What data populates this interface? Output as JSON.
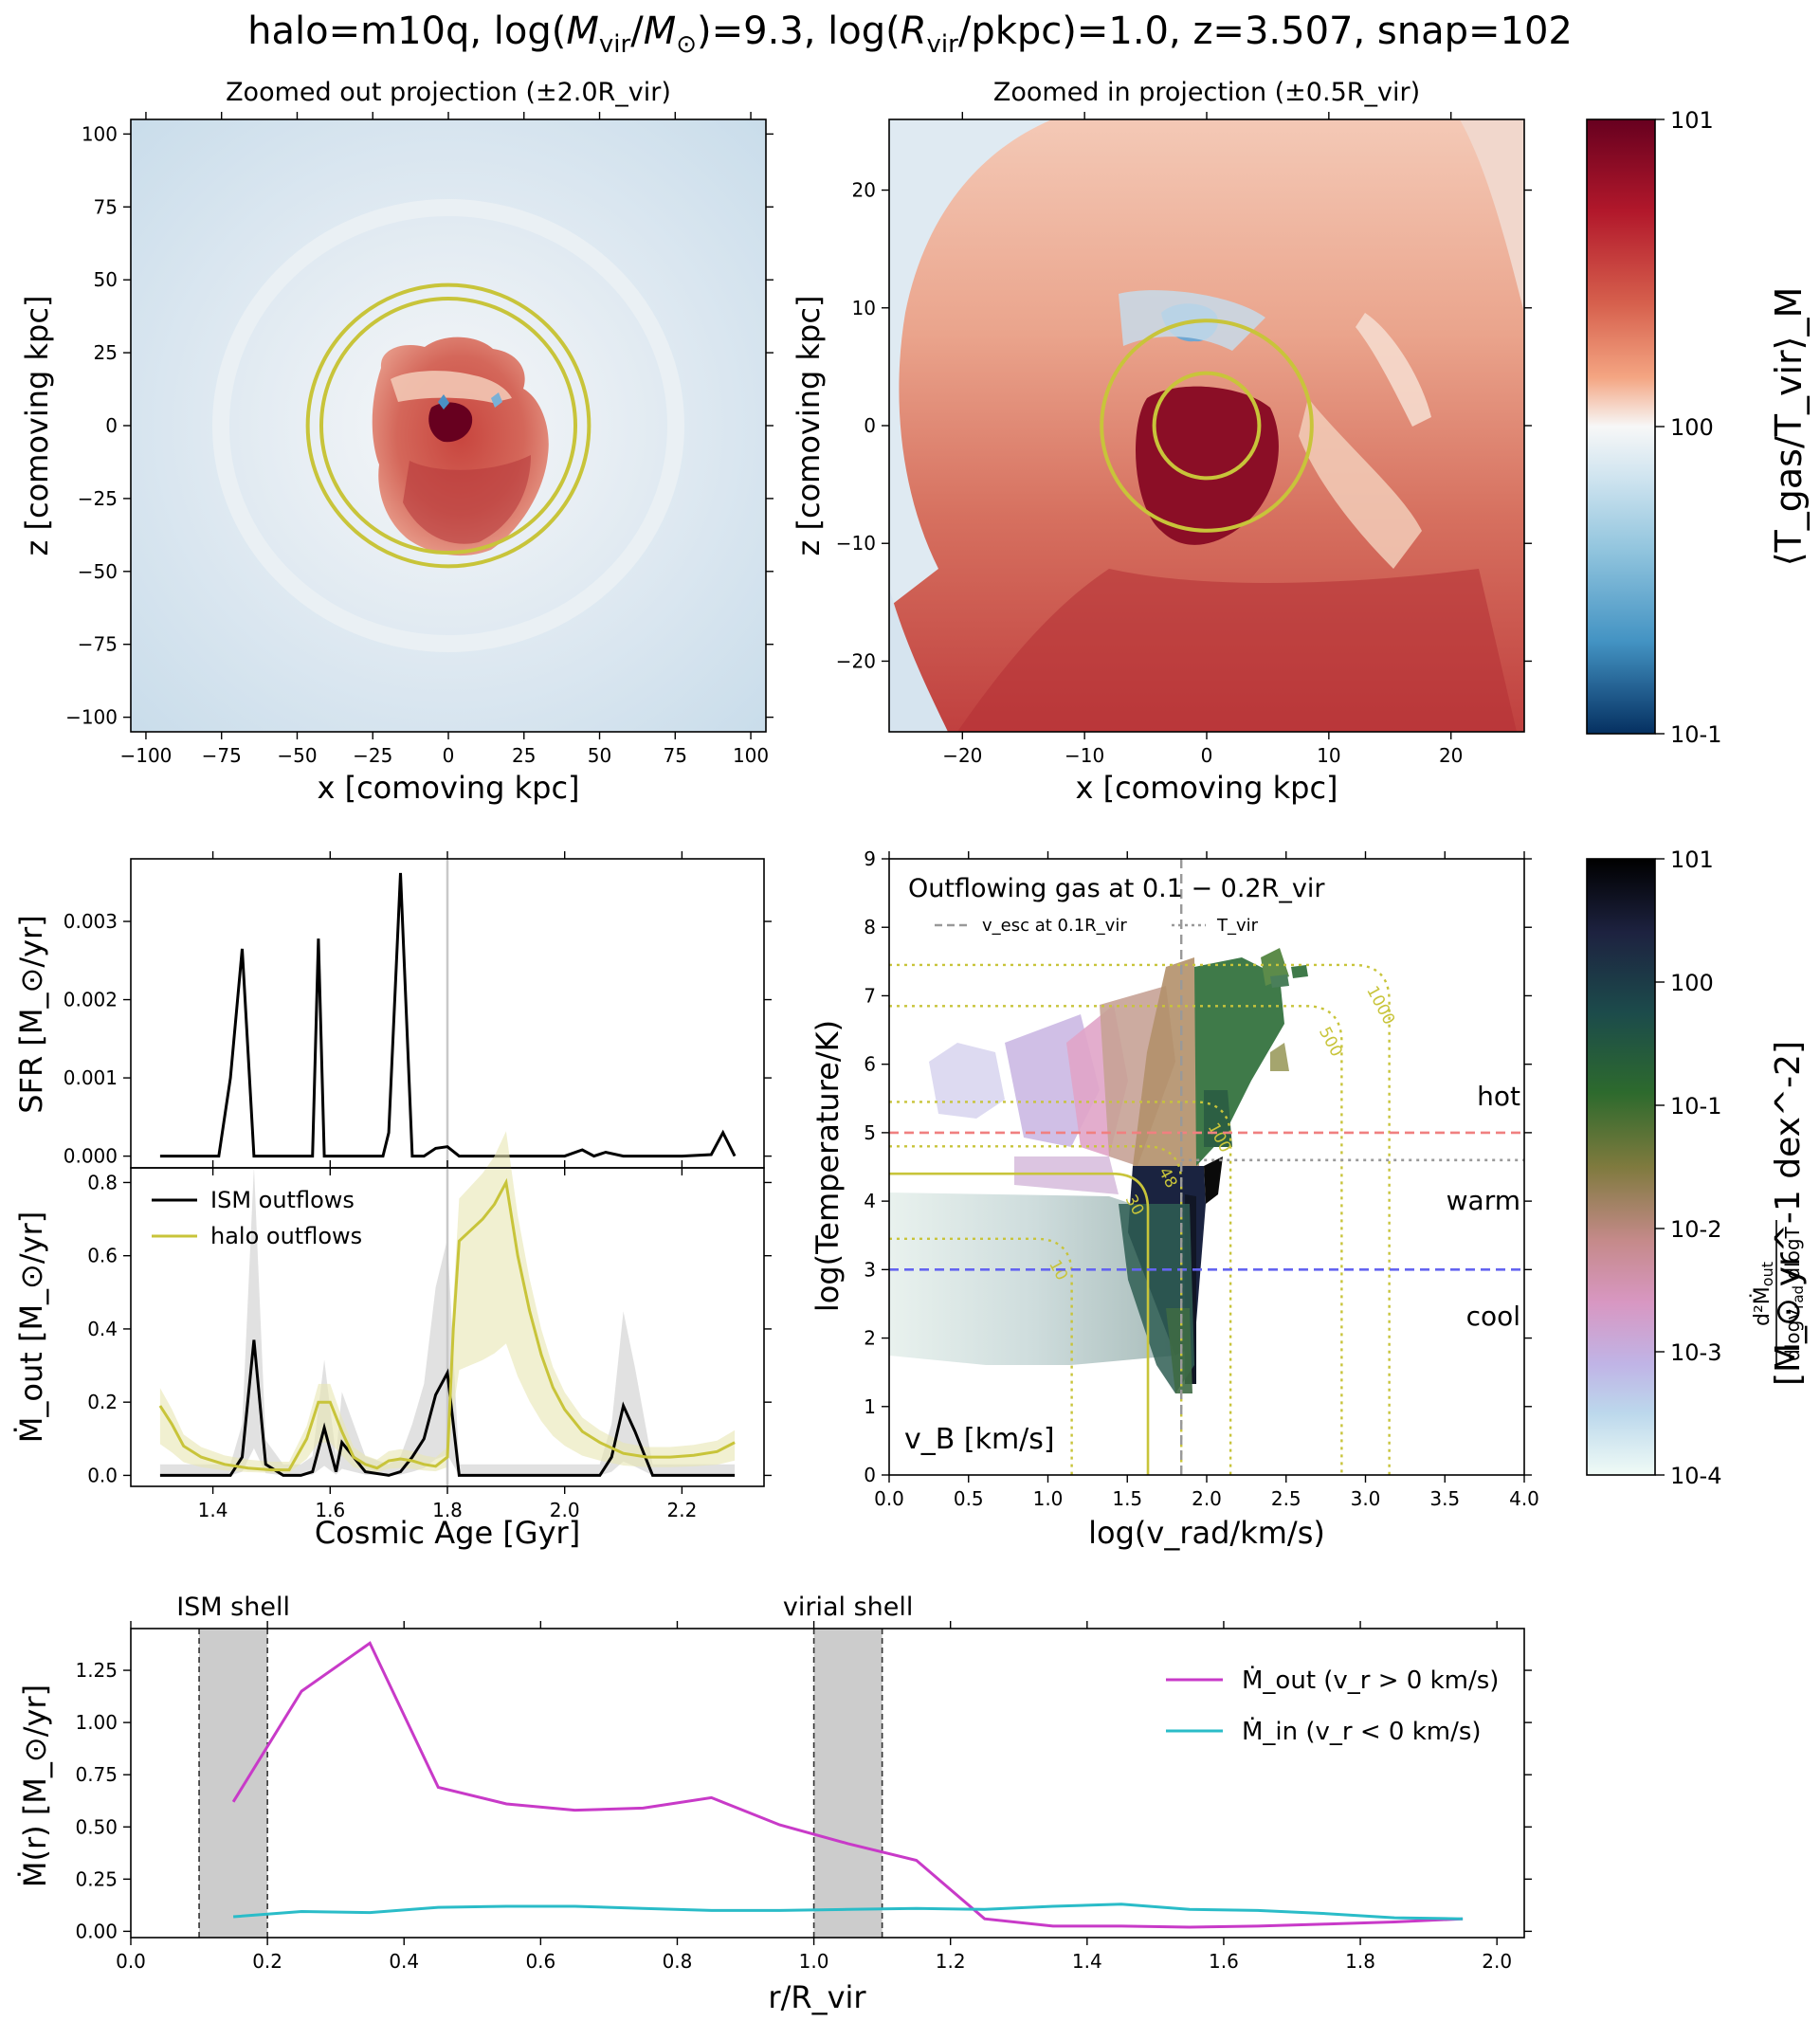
{
  "page_title": "halo=m10q, log(M_vir/M_⊙)=9.3, log(R_vir/pkpc)=1.0, z=3.507, snap=102",
  "colors": {
    "ring": "#c8c43a",
    "sfr_line": "#000000",
    "ism_outflow": "#000000",
    "halo_outflow": "#c8c43a",
    "mout_line": "#c83ac8",
    "min_line": "#2abcc8",
    "hot_line": "#f08080",
    "cool_line": "#6464f0",
    "tvir_line": "#999999",
    "hot_text": "#ff0000",
    "warm_text": "#008000",
    "cool_text": "#0000dd"
  },
  "chart_data": [
    {
      "id": "zoom-out",
      "type": "heatmap",
      "title": "Zoomed out projection (±2.0R_vir)",
      "xlabel": "x [comoving kpc]",
      "ylabel": "z [comoving kpc]",
      "xlim": [
        -105,
        105
      ],
      "ylim": [
        -105,
        105
      ],
      "xticks": [
        -100,
        -75,
        -50,
        -25,
        0,
        25,
        50,
        75,
        100
      ],
      "yticks": [
        -100,
        -75,
        -50,
        -25,
        0,
        25,
        50,
        75,
        100
      ],
      "rings_kpc": [
        42,
        46.5
      ],
      "colorbar": {
        "label": "⟨T_gas/T_vir⟩_M",
        "scale": "log",
        "range": [
          0.1,
          10
        ],
        "ticks": [
          "10^-1",
          "10^0",
          "10^1"
        ]
      }
    },
    {
      "id": "zoom-in",
      "type": "heatmap",
      "title": "Zoomed in projection (±0.5R_vir)",
      "xlabel": "x [comoving kpc]",
      "ylabel": "z [comoving kpc]",
      "xlim": [
        -26,
        26
      ],
      "ylim": [
        -26,
        26
      ],
      "xticks": [
        -20,
        -10,
        0,
        10,
        20
      ],
      "yticks": [
        -20,
        -10,
        0,
        10,
        20
      ],
      "rings_kpc": [
        4.3,
        8.6
      ]
    },
    {
      "id": "sfr",
      "type": "line",
      "ylabel": "SFR [M_⊙/yr]",
      "xlim": [
        1.26,
        2.34
      ],
      "ylim": [
        -0.00015,
        0.0038
      ],
      "yticks": [
        0.0,
        0.001,
        0.002,
        0.003
      ],
      "yticklabels": [
        "0.000",
        "0.001",
        "0.002",
        "0.003"
      ],
      "vline_x": 1.8,
      "x": [
        1.31,
        1.33,
        1.35,
        1.37,
        1.39,
        1.41,
        1.43,
        1.45,
        1.47,
        1.49,
        1.51,
        1.53,
        1.55,
        1.57,
        1.58,
        1.59,
        1.61,
        1.63,
        1.65,
        1.67,
        1.69,
        1.7,
        1.72,
        1.74,
        1.76,
        1.78,
        1.8,
        1.82,
        1.84,
        1.86,
        1.88,
        1.9,
        1.95,
        2.0,
        2.03,
        2.05,
        2.07,
        2.1,
        2.15,
        2.2,
        2.25,
        2.27,
        2.29
      ],
      "values": [
        0,
        0,
        0,
        0,
        0,
        0,
        0.001,
        0.00265,
        0,
        0,
        0,
        0,
        0,
        0,
        0.00278,
        0,
        0,
        0,
        0,
        0,
        0,
        0.0003,
        0.00362,
        0,
        0,
        0.0001,
        0.00012,
        0,
        0,
        0,
        0,
        0,
        0,
        0,
        8e-05,
        0,
        5e-05,
        0,
        0,
        0,
        2e-05,
        0.0003,
        0
      ]
    },
    {
      "id": "mout",
      "type": "line",
      "xlabel": "Cosmic Age [Gyr]",
      "ylabel": "Ṁ_out [M_⊙/yr]",
      "xlim": [
        1.26,
        2.34
      ],
      "ylim": [
        -0.03,
        0.84
      ],
      "xticks": [
        1.4,
        1.6,
        1.8,
        2.0,
        2.2
      ],
      "xticklabels": [
        "1.4",
        "1.6",
        "1.8",
        "2.0",
        "2.2"
      ],
      "yticks": [
        0.0,
        0.2,
        0.4,
        0.6,
        0.8
      ],
      "yticklabels": [
        "0.0",
        "0.2",
        "0.4",
        "0.6",
        "0.8"
      ],
      "vline_x": 1.8,
      "legend": [
        "ISM outflows",
        "halo outflows"
      ],
      "series": [
        {
          "name": "ISM outflows",
          "x": [
            1.31,
            1.35,
            1.4,
            1.43,
            1.45,
            1.47,
            1.49,
            1.52,
            1.55,
            1.57,
            1.59,
            1.61,
            1.62,
            1.64,
            1.66,
            1.7,
            1.72,
            1.74,
            1.76,
            1.78,
            1.8,
            1.82,
            1.86,
            1.92,
            2.0,
            2.06,
            2.08,
            2.1,
            2.12,
            2.15,
            2.2,
            2.25,
            2.29
          ],
          "values": [
            0.0,
            0.0,
            0.0,
            0.0,
            0.05,
            0.37,
            0.03,
            0.0,
            0.0,
            0.01,
            0.13,
            0.01,
            0.09,
            0.05,
            0.01,
            0.0,
            0.01,
            0.05,
            0.1,
            0.22,
            0.28,
            0.0,
            0.0,
            0.0,
            0.0,
            0.0,
            0.05,
            0.19,
            0.12,
            0.0,
            0.0,
            0.0,
            0.0
          ]
        },
        {
          "name": "halo outflows",
          "x": [
            1.31,
            1.33,
            1.35,
            1.38,
            1.42,
            1.46,
            1.5,
            1.53,
            1.56,
            1.58,
            1.6,
            1.62,
            1.64,
            1.66,
            1.68,
            1.7,
            1.72,
            1.74,
            1.76,
            1.78,
            1.8,
            1.81,
            1.82,
            1.84,
            1.86,
            1.88,
            1.9,
            1.92,
            1.94,
            1.96,
            1.98,
            2.0,
            2.03,
            2.06,
            2.1,
            2.14,
            2.18,
            2.22,
            2.26,
            2.29
          ],
          "values": [
            0.19,
            0.14,
            0.08,
            0.05,
            0.03,
            0.02,
            0.015,
            0.015,
            0.1,
            0.2,
            0.2,
            0.12,
            0.05,
            0.03,
            0.02,
            0.04,
            0.045,
            0.04,
            0.03,
            0.025,
            0.05,
            0.4,
            0.64,
            0.67,
            0.7,
            0.74,
            0.8,
            0.6,
            0.45,
            0.33,
            0.24,
            0.18,
            0.12,
            0.09,
            0.06,
            0.05,
            0.05,
            0.055,
            0.065,
            0.09
          ]
        }
      ]
    },
    {
      "id": "phase",
      "type": "heatmap",
      "title": "Outflowing gas at 0.1 − 0.2R_vir",
      "xlabel": "log(v_rad/km/s)",
      "ylabel": "log(Temperature/K)",
      "xlim": [
        0,
        4
      ],
      "ylim": [
        0,
        9
      ],
      "xticks": [
        0.0,
        0.5,
        1.0,
        1.5,
        2.0,
        2.5,
        3.0,
        3.5,
        4.0
      ],
      "xticklabels": [
        "0.0",
        "0.5",
        "1.0",
        "1.5",
        "2.0",
        "2.5",
        "3.0",
        "3.5",
        "4.0"
      ],
      "yticks": [
        0,
        1,
        2,
        3,
        4,
        5,
        6,
        7,
        8,
        9
      ],
      "legend": [
        "v_esc at 0.1R_vir",
        "T_vir"
      ],
      "vesc_logv": 1.84,
      "tvir_logT": 4.6,
      "hot_logT": 5.0,
      "cool_logT": 3.0,
      "region_labels": [
        "hot",
        "warm",
        "cool"
      ],
      "bernoulli_label": "v_B [km/s]",
      "contour_labels": [
        "10",
        "30",
        "48",
        "100",
        "500",
        "1000"
      ],
      "colorbar": {
        "label": "[M_⊙ yr^-1 dex^-2]",
        "scale": "log",
        "range": [
          0.0001,
          10
        ],
        "ticks": [
          "10^-4",
          "10^-3",
          "10^-2",
          "10^-1",
          "10^0",
          "10^1"
        ]
      }
    },
    {
      "id": "profile",
      "type": "line",
      "xlabel": "r/R_vir",
      "ylabel": "Ṁ(r) [M_⊙/yr]",
      "xlim": [
        0,
        2.04
      ],
      "ylim": [
        -0.03,
        1.45
      ],
      "xticks": [
        0.0,
        0.2,
        0.4,
        0.6,
        0.8,
        1.0,
        1.2,
        1.4,
        1.6,
        1.8,
        2.0
      ],
      "xticklabels": [
        "0.0",
        "0.2",
        "0.4",
        "0.6",
        "0.8",
        "1.0",
        "1.2",
        "1.4",
        "1.6",
        "1.8",
        "2.0"
      ],
      "yticks": [
        0.0,
        0.25,
        0.5,
        0.75,
        1.0,
        1.25
      ],
      "yticklabels": [
        "0.00",
        "0.25",
        "0.50",
        "0.75",
        "1.00",
        "1.25"
      ],
      "shells": [
        {
          "label": "ISM shell",
          "range": [
            0.1,
            0.2
          ]
        },
        {
          "label": "virial shell",
          "range": [
            1.0,
            1.1
          ]
        }
      ],
      "legend": [
        "Ṁ_out (v_r > 0 km/s)",
        "Ṁ_in (v_r < 0 km/s)"
      ],
      "series": [
        {
          "name": "Ṁ_out (v_r > 0 km/s)",
          "x": [
            0.15,
            0.25,
            0.35,
            0.45,
            0.55,
            0.65,
            0.75,
            0.85,
            0.95,
            1.05,
            1.15,
            1.25,
            1.35,
            1.45,
            1.55,
            1.65,
            1.75,
            1.85,
            1.95
          ],
          "values": [
            0.62,
            1.15,
            1.38,
            0.69,
            0.61,
            0.58,
            0.59,
            0.64,
            0.51,
            0.42,
            0.34,
            0.06,
            0.025,
            0.025,
            0.02,
            0.025,
            0.035,
            0.045,
            0.06
          ]
        },
        {
          "name": "Ṁ_in (v_r < 0 km/s)",
          "x": [
            0.15,
            0.25,
            0.35,
            0.45,
            0.55,
            0.65,
            0.75,
            0.85,
            0.95,
            1.05,
            1.15,
            1.25,
            1.35,
            1.45,
            1.55,
            1.65,
            1.75,
            1.85,
            1.95
          ],
          "values": [
            0.07,
            0.095,
            0.09,
            0.115,
            0.12,
            0.12,
            0.11,
            0.1,
            0.1,
            0.105,
            0.11,
            0.105,
            0.12,
            0.13,
            0.105,
            0.1,
            0.085,
            0.065,
            0.06
          ]
        }
      ]
    }
  ]
}
